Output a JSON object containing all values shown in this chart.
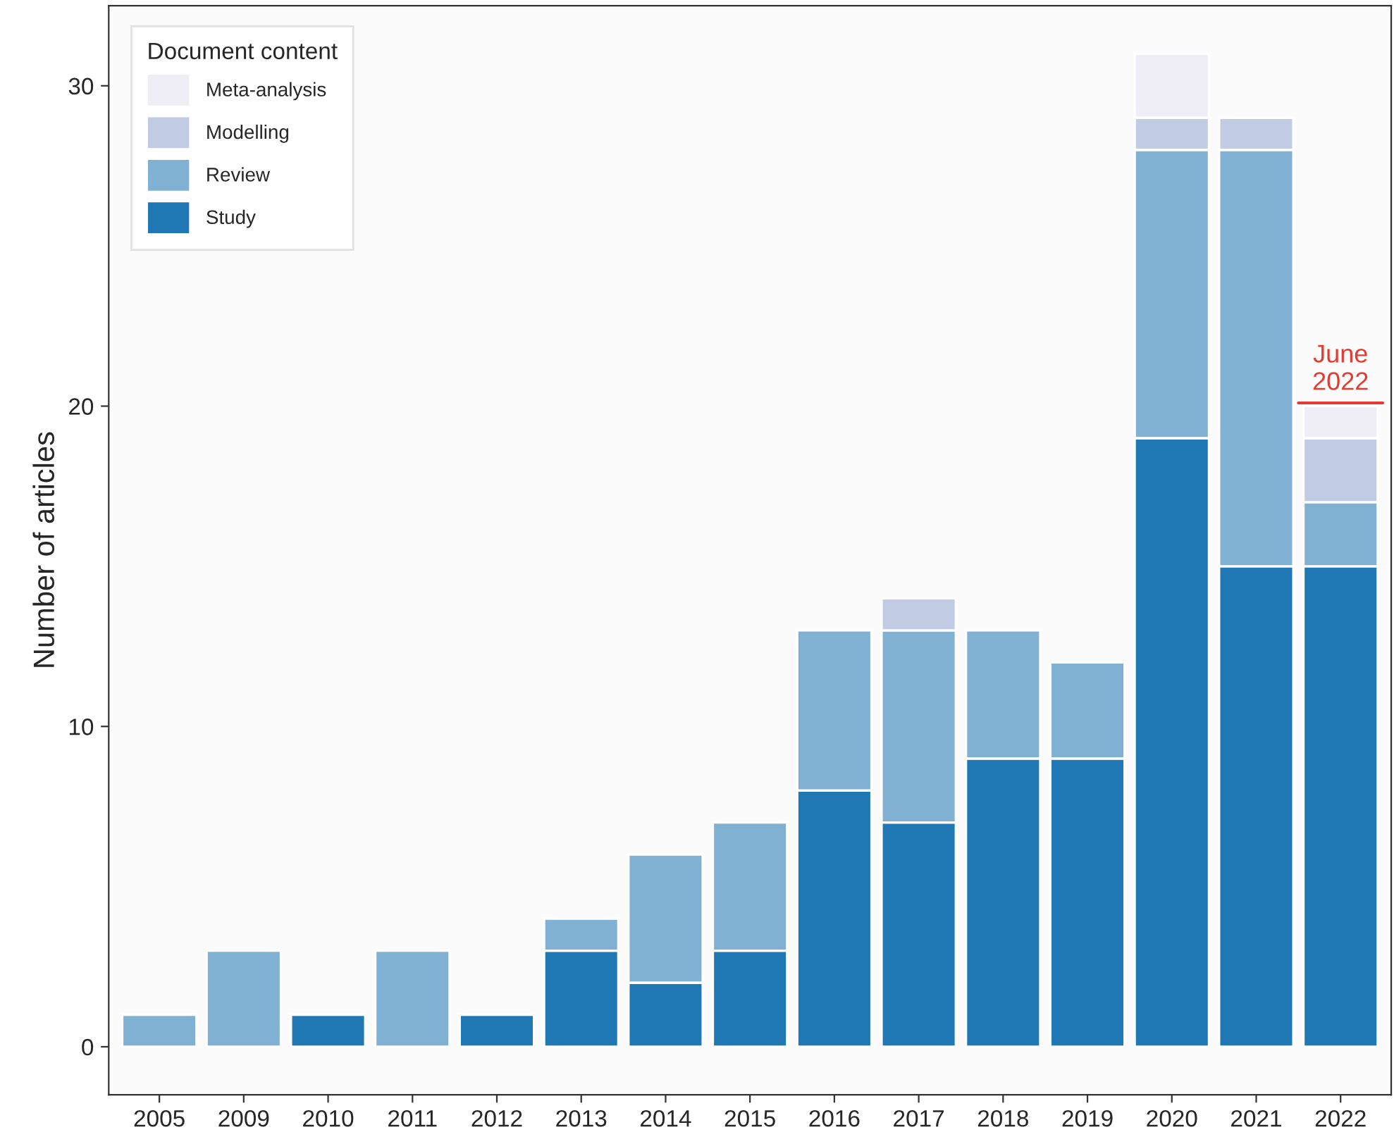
{
  "chart_data": {
    "type": "bar",
    "stacked": true,
    "ylabel": "Number of articles",
    "legend_title": "Document content",
    "legend": "top left",
    "grid": false,
    "categories": [
      "2005",
      "2009",
      "2010",
      "2011",
      "2012",
      "2013",
      "2014",
      "2015",
      "2016",
      "2017",
      "2018",
      "2019",
      "2020",
      "2021",
      "2022"
    ],
    "series": [
      {
        "name": "Study",
        "color": "#1f78b4",
        "values": [
          null,
          null,
          1,
          null,
          1,
          3,
          2,
          3,
          8,
          7,
          9,
          9,
          19,
          15,
          15
        ]
      },
      {
        "name": "Review",
        "color": "#80b1d3",
        "values": [
          1,
          3,
          null,
          3,
          null,
          1,
          4,
          4,
          5,
          6,
          4,
          3,
          9,
          13,
          2
        ]
      },
      {
        "name": "Modelling",
        "color": "#c1cbe4",
        "values": [
          null,
          null,
          null,
          null,
          null,
          null,
          null,
          null,
          null,
          1,
          null,
          null,
          1,
          1,
          2
        ]
      },
      {
        "name": "Meta-analysis",
        "color": "#efedf5",
        "values": [
          null,
          null,
          null,
          null,
          null,
          null,
          null,
          null,
          null,
          null,
          null,
          null,
          2,
          null,
          1
        ]
      }
    ],
    "ylim": [
      -1.5,
      32.5
    ],
    "yticks": [
      0,
      10,
      20,
      30
    ],
    "annotations": [
      {
        "text": "June\n2022",
        "x": "2022",
        "y": 20.1
      }
    ]
  }
}
